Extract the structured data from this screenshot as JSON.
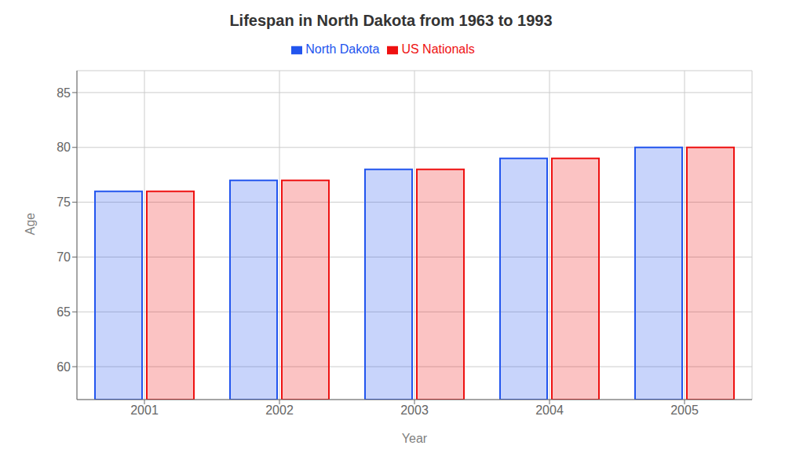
{
  "chart_data": {
    "type": "bar",
    "title": "Lifespan in North Dakota from 1963 to 1993",
    "x_label": "Year",
    "y_label": "Age",
    "categories": [
      "2001",
      "2002",
      "2003",
      "2004",
      "2005"
    ],
    "series": [
      {
        "name": "North Dakota",
        "color": "#2255ee",
        "values": [
          76.0,
          77.0,
          78.0,
          79.0,
          80.0
        ]
      },
      {
        "name": "US Nationals",
        "color": "#ee1111",
        "values": [
          76.0,
          77.0,
          78.0,
          79.0,
          80.0
        ]
      }
    ],
    "ylim": [
      57,
      87
    ],
    "yticks": [
      60,
      65,
      70,
      75,
      80,
      85
    ],
    "grid": true,
    "legend": "top"
  }
}
